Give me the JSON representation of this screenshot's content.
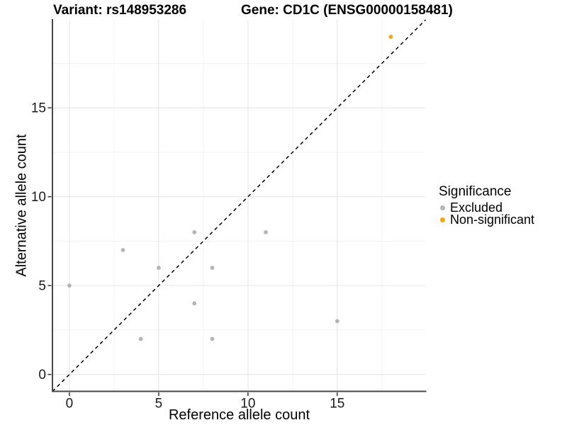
{
  "figure": {
    "title_left": "Variant: rs148953286",
    "title_right": "Gene: CD1C (ENSG00000158481)"
  },
  "chart_data": {
    "type": "scatter",
    "title": "Variant: rs148953286 — Gene: CD1C (ENSG00000158481)",
    "xlabel": "Reference allele count",
    "ylabel": "Alternative allele count",
    "xlim": [
      -0.95,
      19.95
    ],
    "ylim": [
      -0.95,
      19.95
    ],
    "x_ticks": [
      0,
      5,
      10,
      15
    ],
    "y_ticks": [
      0,
      5,
      10,
      15
    ],
    "minor_ticks": [
      2.5,
      7.5,
      12.5,
      17.5
    ],
    "grid": true,
    "reference_line": {
      "type": "identity y=x",
      "style": "dashed",
      "color": "#000000"
    },
    "series": [
      {
        "name": "Excluded",
        "color": "#b4b4b4",
        "points": [
          [
            0,
            5
          ],
          [
            3,
            7
          ],
          [
            4,
            2
          ],
          [
            5,
            6
          ],
          [
            7,
            4
          ],
          [
            7,
            8
          ],
          [
            8,
            2
          ],
          [
            8,
            6
          ],
          [
            11,
            8
          ],
          [
            15,
            3
          ]
        ]
      },
      {
        "name": "Non-significant",
        "color": "#ffa500",
        "points": [
          [
            18,
            19
          ]
        ]
      }
    ]
  },
  "legend": {
    "title": "Significance",
    "position": "right",
    "entries": [
      {
        "label": "Excluded",
        "color": "#b4b4b4"
      },
      {
        "label": "Non-significant",
        "color": "#ffa500"
      }
    ]
  }
}
